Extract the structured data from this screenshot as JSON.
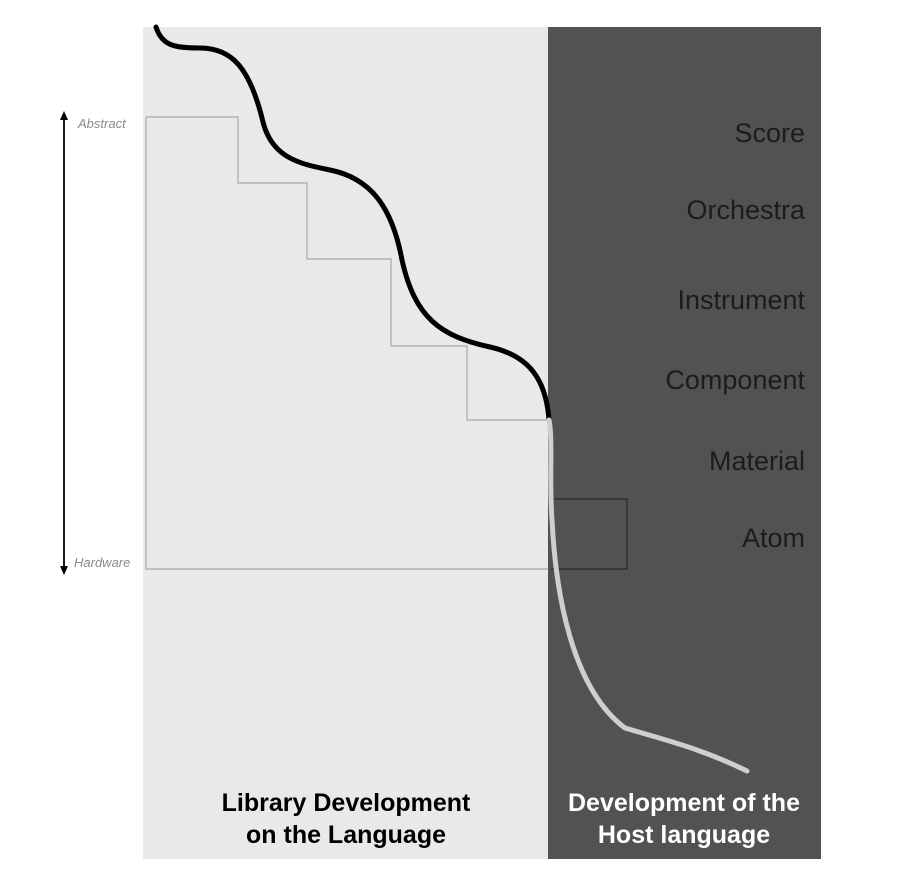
{
  "axis": {
    "top_label": "Abstract",
    "bottom_label": "Hardware"
  },
  "levels": [
    {
      "label": "Score"
    },
    {
      "label": "Orchestra"
    },
    {
      "label": "Instrument"
    },
    {
      "label": "Component"
    },
    {
      "label": "Material"
    },
    {
      "label": "Atom"
    }
  ],
  "panels": {
    "left": {
      "title_line1": "Library Development",
      "title_line2": "on the Language",
      "color": "#e9e9e9"
    },
    "right": {
      "title_line1": "Development of the",
      "title_line2": "Host language",
      "color": "#525252"
    }
  },
  "colors": {
    "curve_upper": "#000000",
    "curve_lower": "#cfcfcf",
    "step_line": "#a8a8a8",
    "atom_box": "#2a2a2a"
  }
}
